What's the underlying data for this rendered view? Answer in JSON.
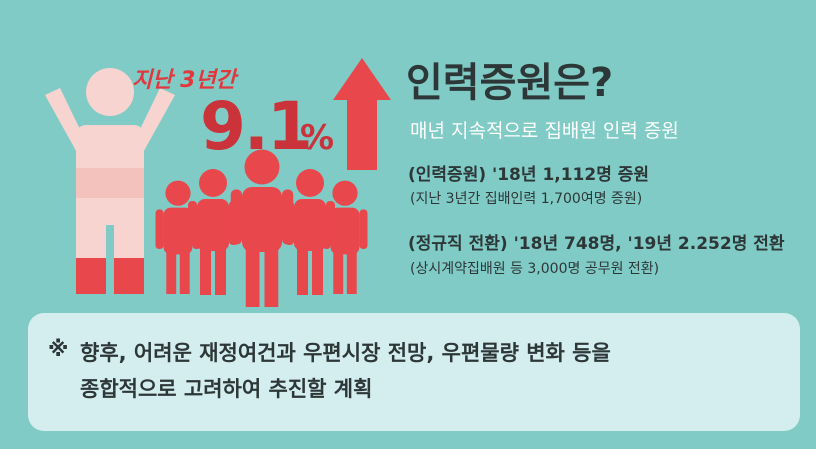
{
  "badge": {
    "period": "지난 3년간",
    "number": "9.1",
    "unit": "%"
  },
  "title": "인력증원은?",
  "subtitle": "매년 지속적으로 집배원 인력 증원",
  "items": [
    {
      "main": "(인력증원) '18년 1,112명 증원",
      "sub": "(지난 3년간 집배인력 1,700여명 증원)"
    },
    {
      "main": "(정규직 전환) '18년 748명, '19년 2.252명 전환",
      "sub": "(상시계약집배원 등 3,000명 공무원 전환)"
    }
  ],
  "note": {
    "mark": "※",
    "lines": [
      "향후, 어려운 재정여건과 우편시장 전망, 우편물량 변화 등을",
      "종합적으로 고려하여 추진할 계획"
    ]
  }
}
